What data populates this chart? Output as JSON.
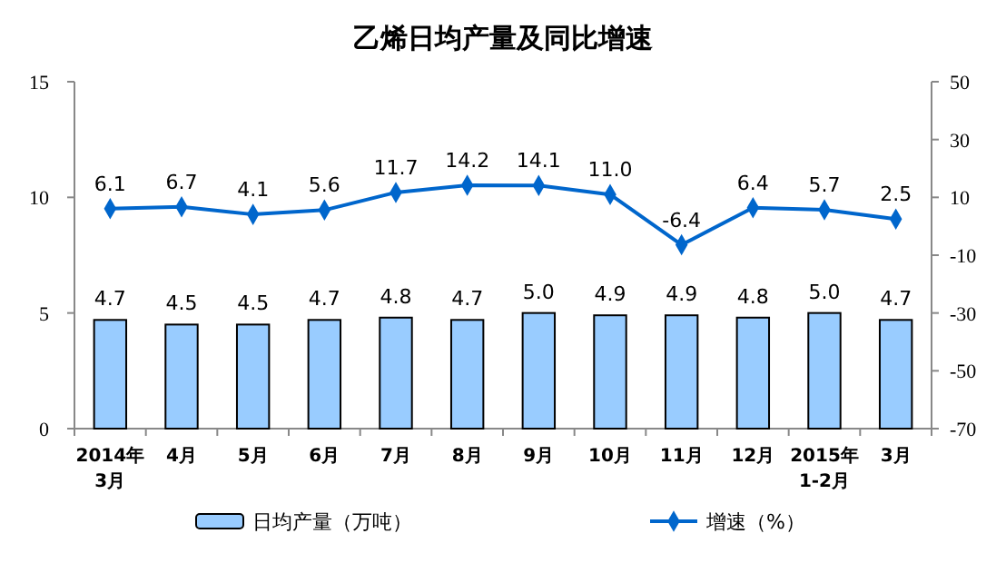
{
  "chart_data": {
    "type": "bar",
    "title": "乙烯日均产量及同比增速",
    "categories": [
      "2014年\n3月",
      "4月",
      "5月",
      "6月",
      "7月",
      "8月",
      "9月",
      "10月",
      "11月",
      "12月",
      "2015年\n1-2月",
      "3月"
    ],
    "series": [
      {
        "name": "日均产量（万吨）",
        "color": "#99ccff",
        "values": [
          4.7,
          4.5,
          4.5,
          4.7,
          4.8,
          4.7,
          5.0,
          4.9,
          4.9,
          4.8,
          5.0,
          4.7
        ],
        "value_labels": [
          "4.7",
          "4.5",
          "4.5",
          "4.7",
          "4.8",
          "4.7",
          "5.0",
          "4.9",
          "4.9",
          "4.8",
          "5.0",
          "4.7"
        ]
      },
      {
        "name": "增速（%）",
        "type": "line",
        "axis": "y2",
        "color": "#0066cc",
        "marker": "diamond",
        "values": [
          6.1,
          6.7,
          4.1,
          5.6,
          11.7,
          14.2,
          14.1,
          11.0,
          -6.4,
          6.4,
          5.7,
          2.5
        ],
        "value_labels": [
          "6.1",
          "6.7",
          "4.1",
          "5.6",
          "11.7",
          "14.2",
          "14.1",
          "11.0",
          "-6.4",
          "6.4",
          "5.7",
          "2.5"
        ]
      }
    ],
    "ylim": [
      0,
      15
    ],
    "yticks": [
      0,
      5,
      10,
      15
    ],
    "y2lim": [
      -70,
      50
    ],
    "y2ticks": [
      -70,
      -50,
      -30,
      -10,
      10,
      30,
      50
    ],
    "legend": "bottom",
    "grid": false
  }
}
